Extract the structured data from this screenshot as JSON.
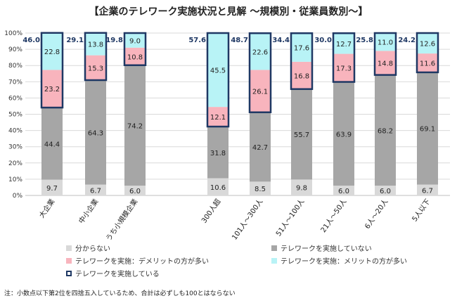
{
  "title": "【企業のテレワーク実施状況と見解 ～規模別・従業員数別～】",
  "note": "注：小数点以下第2位を四捨五入しているため、合計は必ずしも100とはならない",
  "legend": [
    {
      "label": "分からない",
      "color": "#d9d9d9",
      "key": "unknown"
    },
    {
      "label": "テレワークを実施していない",
      "color": "#a6a6a6",
      "key": "not_implemented"
    },
    {
      "label": "テレワークを実施：デメリットの方が多い",
      "color": "#f8b4bd",
      "key": "demerit"
    },
    {
      "label": "テレワークを実施：メリットの方が多い",
      "color": "#b8f3f6",
      "key": "merit"
    },
    {
      "label": "テレワークを実施している",
      "color": "#ffffff",
      "border": "#1f3864",
      "key": "implemented"
    }
  ],
  "chart_data": {
    "type": "bar",
    "stacked": true,
    "ylim": [
      0,
      100
    ],
    "yticks": [
      "0%",
      "10%",
      "20%",
      "30%",
      "40%",
      "50%",
      "60%",
      "70%",
      "80%",
      "90%",
      "100%"
    ],
    "categories": [
      "大企業",
      "中小企業",
      "うち小規模企業",
      "300人超",
      "101人～300人",
      "51人～100人",
      "21人～50人",
      "6人～20人",
      "5人以下"
    ],
    "series": [
      {
        "name": "分からない",
        "color": "#d9d9d9",
        "values": [
          9.7,
          6.7,
          6.0,
          10.6,
          8.5,
          9.8,
          6.0,
          6.0,
          6.7
        ]
      },
      {
        "name": "テレワークを実施していない",
        "color": "#a6a6a6",
        "values": [
          44.4,
          64.3,
          74.2,
          31.8,
          42.7,
          55.7,
          63.9,
          68.2,
          69.1
        ]
      },
      {
        "name": "テレワークを実施：デメリットの方が多い",
        "color": "#f8b4bd",
        "values": [
          23.2,
          15.3,
          10.8,
          12.1,
          26.1,
          16.8,
          17.3,
          14.8,
          11.6
        ]
      },
      {
        "name": "テレワークを実施：メリットの方が多い",
        "color": "#b8f3f6",
        "values": [
          22.8,
          13.8,
          9.0,
          45.5,
          22.6,
          17.6,
          12.7,
          11.0,
          12.6
        ]
      }
    ],
    "implemented_totals": [
      "46.0",
      "29.1",
      "19.8",
      "57.6",
      "48.7",
      "34.4",
      "30.0",
      "25.8",
      "24.2"
    ],
    "implemented_border_color": "#1f3864",
    "implemented_label_color": "#1f3864",
    "grid": true
  }
}
